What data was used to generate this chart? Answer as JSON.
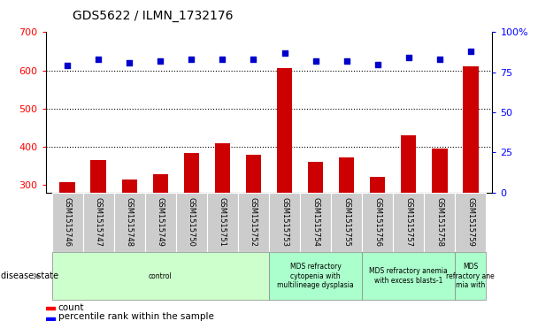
{
  "title": "GDS5622 / ILMN_1732176",
  "samples": [
    "GSM1515746",
    "GSM1515747",
    "GSM1515748",
    "GSM1515749",
    "GSM1515750",
    "GSM1515751",
    "GSM1515752",
    "GSM1515753",
    "GSM1515754",
    "GSM1515755",
    "GSM1515756",
    "GSM1515757",
    "GSM1515758",
    "GSM1515759"
  ],
  "counts": [
    308,
    365,
    315,
    328,
    383,
    410,
    379,
    605,
    360,
    372,
    322,
    431,
    395,
    610
  ],
  "percentile_ranks": [
    79,
    83,
    81,
    82,
    83,
    83,
    83,
    87,
    82,
    82,
    80,
    84,
    83,
    88
  ],
  "ylim_left": [
    280,
    700
  ],
  "ylim_right": [
    0,
    100
  ],
  "yticks_left": [
    300,
    400,
    500,
    600,
    700
  ],
  "yticks_right": [
    0,
    25,
    50,
    75,
    100
  ],
  "bar_color": "#cc0000",
  "dot_color": "#0000cc",
  "title_fontsize": 10,
  "disease_groups": [
    {
      "label": "control",
      "start": 0,
      "end": 7,
      "color": "#ccffcc"
    },
    {
      "label": "MDS refractory\ncytopenia with\nmultilineage dysplasia",
      "start": 7,
      "end": 10,
      "color": "#aaffcc"
    },
    {
      "label": "MDS refractory anemia\nwith excess blasts-1",
      "start": 10,
      "end": 13,
      "color": "#aaffcc"
    },
    {
      "label": "MDS\nrefractory ane\nmia with",
      "start": 13,
      "end": 14,
      "color": "#aaffcc"
    }
  ],
  "disease_label": "disease state",
  "legend_count_label": "count",
  "legend_percentile_label": "percentile rank within the sample",
  "bg_color": "#ffffff",
  "tick_area_color": "#cccccc"
}
